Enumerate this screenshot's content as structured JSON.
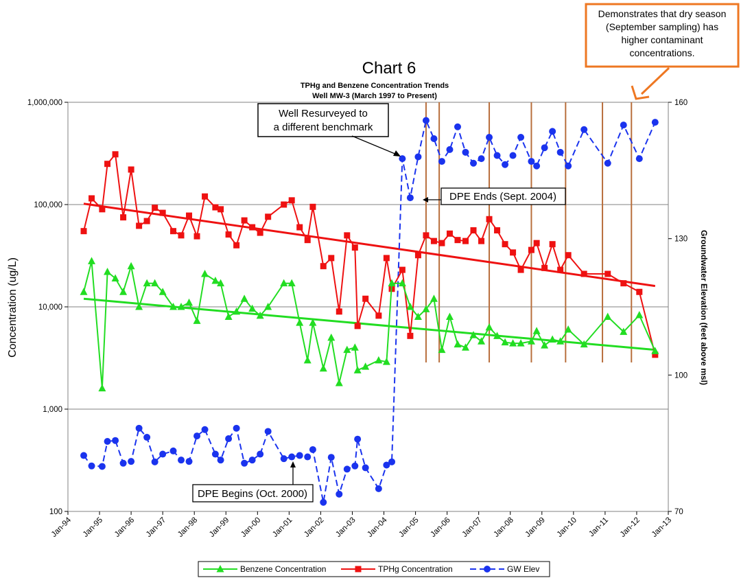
{
  "chart_data": {
    "type": "line",
    "title": "Chart 6",
    "subtitle_line1": "TPHg and Benzene Concentration Trends",
    "subtitle_line2": "Well MW-3 (March 1997 to Present)",
    "ylabel_left": "Concentration (ug/L)",
    "ylabel_right": "Groundwater Elevation (feet above msl)",
    "y_left_scale": "log",
    "y_left_range": [
      100,
      1000000
    ],
    "y_left_ticks": [
      "100",
      "1,000",
      "10,000",
      "100,000",
      "1,000,000"
    ],
    "y_right_range": [
      70,
      160
    ],
    "y_right_ticks": [
      "70",
      "100",
      "130",
      "160"
    ],
    "x_range": [
      "Jan-94",
      "Jan-13"
    ],
    "x_ticks": [
      "Jan-94",
      "Jan-95",
      "Jan-96",
      "Jan-97",
      "Jan-98",
      "Jan-99",
      "Jan-00",
      "Jan-01",
      "Jan-02",
      "Jan-03",
      "Jan-04",
      "Jan-05",
      "Jan-06",
      "Jan-07",
      "Jan-08",
      "Jan-09",
      "Jan-10",
      "Jan-11",
      "Jan-12",
      "Jan-13"
    ],
    "grid": "horizontal",
    "legend_position": "bottom",
    "series": [
      {
        "name": "Benzene Concentration",
        "axis": "left",
        "color": "#22dd22",
        "marker": "triangle",
        "dash": "solid",
        "points": [
          [
            "1994-07",
            14000
          ],
          [
            "1994-10",
            28000
          ],
          [
            "1995-02",
            1600
          ],
          [
            "1995-04",
            22000
          ],
          [
            "1995-07",
            19000
          ],
          [
            "1995-10",
            14000
          ],
          [
            "1996-01",
            25000
          ],
          [
            "1996-04",
            10000
          ],
          [
            "1996-07",
            17000
          ],
          [
            "1996-10",
            17000
          ],
          [
            "1997-01",
            14000
          ],
          [
            "1997-05",
            10000
          ],
          [
            "1997-08",
            10000
          ],
          [
            "1997-11",
            11000
          ],
          [
            "1998-02",
            7300
          ],
          [
            "1998-05",
            21000
          ],
          [
            "1998-09",
            18000
          ],
          [
            "1998-11",
            17000
          ],
          [
            "1999-02",
            8000
          ],
          [
            "1999-05",
            9000
          ],
          [
            "1999-08",
            12000
          ],
          [
            "1999-11",
            9600
          ],
          [
            "2000-02",
            8200
          ],
          [
            "2000-05",
            10000
          ],
          [
            "2000-11",
            17000
          ],
          [
            "2001-02",
            17000
          ],
          [
            "2001-05",
            7000
          ],
          [
            "2001-08",
            3000
          ],
          [
            "2001-10",
            7000
          ],
          [
            "2002-02",
            2500
          ],
          [
            "2002-05",
            5000
          ],
          [
            "2002-08",
            1800
          ],
          [
            "2002-11",
            3800
          ],
          [
            "2003-02",
            4000
          ],
          [
            "2003-03",
            2400
          ],
          [
            "2003-06",
            2600
          ],
          [
            "2003-11",
            3000
          ],
          [
            "2004-02",
            2900
          ],
          [
            "2004-04",
            17000
          ],
          [
            "2004-08",
            17000
          ],
          [
            "2004-11",
            10000
          ],
          [
            "2005-02",
            8000
          ],
          [
            "2005-05",
            9500
          ],
          [
            "2005-08",
            12000
          ],
          [
            "2005-11",
            3800
          ],
          [
            "2006-02",
            8000
          ],
          [
            "2006-05",
            4300
          ],
          [
            "2006-08",
            4000
          ],
          [
            "2006-11",
            5300
          ],
          [
            "2007-02",
            4600
          ],
          [
            "2007-05",
            6300
          ],
          [
            "2007-08",
            5200
          ],
          [
            "2007-11",
            4500
          ],
          [
            "2008-02",
            4400
          ],
          [
            "2008-05",
            4400
          ],
          [
            "2008-09",
            4600
          ],
          [
            "2008-11",
            5800
          ],
          [
            "2009-02",
            4200
          ],
          [
            "2009-05",
            4800
          ],
          [
            "2009-08",
            4600
          ],
          [
            "2009-11",
            6000
          ],
          [
            "2010-05",
            4300
          ],
          [
            "2011-02",
            8000
          ],
          [
            "2011-08",
            5700
          ],
          [
            "2012-02",
            8300
          ],
          [
            "2012-08",
            3700
          ]
        ]
      },
      {
        "name": "TPHg Concentration",
        "axis": "left",
        "color": "#ee1111",
        "marker": "square",
        "dash": "solid",
        "points": [
          [
            "1994-07",
            55000
          ],
          [
            "1994-10",
            115000
          ],
          [
            "1995-02",
            90000
          ],
          [
            "1995-04",
            250000
          ],
          [
            "1995-07",
            310000
          ],
          [
            "1995-10",
            75000
          ],
          [
            "1996-01",
            220000
          ],
          [
            "1996-04",
            62000
          ],
          [
            "1996-07",
            69000
          ],
          [
            "1996-10",
            93000
          ],
          [
            "1997-01",
            83000
          ],
          [
            "1997-05",
            55000
          ],
          [
            "1997-08",
            50000
          ],
          [
            "1997-11",
            78000
          ],
          [
            "1998-02",
            49000
          ],
          [
            "1998-05",
            120000
          ],
          [
            "1998-09",
            94000
          ],
          [
            "1998-11",
            90000
          ],
          [
            "1999-02",
            51000
          ],
          [
            "1999-05",
            40000
          ],
          [
            "1999-08",
            70000
          ],
          [
            "1999-11",
            60000
          ],
          [
            "2000-02",
            53000
          ],
          [
            "2000-05",
            76000
          ],
          [
            "2000-11",
            100000
          ],
          [
            "2001-02",
            110000
          ],
          [
            "2001-05",
            60000
          ],
          [
            "2001-08",
            45000
          ],
          [
            "2001-10",
            95000
          ],
          [
            "2002-02",
            25000
          ],
          [
            "2002-05",
            30000
          ],
          [
            "2002-08",
            9000
          ],
          [
            "2002-11",
            50000
          ],
          [
            "2003-02",
            38000
          ],
          [
            "2003-03",
            6500
          ],
          [
            "2003-06",
            12000
          ],
          [
            "2003-11",
            8200
          ],
          [
            "2004-02",
            30000
          ],
          [
            "2004-04",
            15000
          ],
          [
            "2004-08",
            23000
          ],
          [
            "2004-11",
            5200
          ],
          [
            "2005-02",
            32000
          ],
          [
            "2005-05",
            50000
          ],
          [
            "2005-08",
            44000
          ],
          [
            "2005-11",
            42000
          ],
          [
            "2006-02",
            52000
          ],
          [
            "2006-05",
            45000
          ],
          [
            "2006-08",
            44000
          ],
          [
            "2006-11",
            56000
          ],
          [
            "2007-02",
            44000
          ],
          [
            "2007-05",
            72000
          ],
          [
            "2007-08",
            56000
          ],
          [
            "2007-11",
            41000
          ],
          [
            "2008-02",
            34000
          ],
          [
            "2008-05",
            23000
          ],
          [
            "2008-09",
            36000
          ],
          [
            "2008-11",
            42000
          ],
          [
            "2009-02",
            24000
          ],
          [
            "2009-05",
            41000
          ],
          [
            "2009-08",
            23000
          ],
          [
            "2009-11",
            32000
          ],
          [
            "2010-05",
            21000
          ],
          [
            "2011-02",
            21000
          ],
          [
            "2011-08",
            17000
          ],
          [
            "2012-02",
            14000
          ],
          [
            "2012-08",
            3400
          ]
        ]
      },
      {
        "name": "GW Elev",
        "axis": "right",
        "color": "#1a33ee",
        "marker": "circle",
        "dash": "dashed",
        "points": [
          [
            "1994-07",
            82.3
          ],
          [
            "1994-10",
            80.0
          ],
          [
            "1995-02",
            79.9
          ],
          [
            "1995-04",
            85.4
          ],
          [
            "1995-07",
            85.6
          ],
          [
            "1995-10",
            80.6
          ],
          [
            "1996-01",
            81.0
          ],
          [
            "1996-04",
            88.3
          ],
          [
            "1996-07",
            86.3
          ],
          [
            "1996-10",
            80.9
          ],
          [
            "1997-01",
            82.6
          ],
          [
            "1997-05",
            83.3
          ],
          [
            "1997-08",
            81.3
          ],
          [
            "1997-11",
            81.0
          ],
          [
            "1998-02",
            86.6
          ],
          [
            "1998-05",
            88.0
          ],
          [
            "1998-09",
            82.6
          ],
          [
            "1998-11",
            81.3
          ],
          [
            "1999-02",
            86.0
          ],
          [
            "1999-05",
            88.3
          ],
          [
            "1999-08",
            80.6
          ],
          [
            "1999-11",
            81.3
          ],
          [
            "2000-02",
            82.6
          ],
          [
            "2000-05",
            87.6
          ],
          [
            "2000-11",
            81.6
          ],
          [
            "2001-02",
            82.0
          ],
          [
            "2001-05",
            82.3
          ],
          [
            "2001-08",
            82.0
          ],
          [
            "2001-10",
            83.6
          ],
          [
            "2002-02",
            72.0
          ],
          [
            "2002-05",
            81.9
          ],
          [
            "2002-08",
            73.8
          ],
          [
            "2002-11",
            79.3
          ],
          [
            "2003-02",
            80.0
          ],
          [
            "2003-03",
            85.9
          ],
          [
            "2003-06",
            79.6
          ],
          [
            "2003-11",
            75.0
          ],
          [
            "2004-02",
            80.2
          ],
          [
            "2004-04",
            80.9
          ],
          [
            "2004-08",
            147.6
          ],
          [
            "2004-11",
            139.0
          ],
          [
            "2005-02",
            148.0
          ],
          [
            "2005-05",
            156.0
          ],
          [
            "2005-08",
            152.0
          ],
          [
            "2005-11",
            147.0
          ],
          [
            "2006-02",
            149.6
          ],
          [
            "2006-05",
            154.6
          ],
          [
            "2006-08",
            149.0
          ],
          [
            "2006-11",
            146.6
          ],
          [
            "2007-02",
            147.6
          ],
          [
            "2007-05",
            152.3
          ],
          [
            "2007-08",
            148.3
          ],
          [
            "2007-11",
            146.3
          ],
          [
            "2008-02",
            148.3
          ],
          [
            "2008-05",
            152.3
          ],
          [
            "2008-09",
            147.0
          ],
          [
            "2008-11",
            146.0
          ],
          [
            "2009-02",
            150.0
          ],
          [
            "2009-05",
            153.6
          ],
          [
            "2009-08",
            149.0
          ],
          [
            "2009-11",
            146.0
          ],
          [
            "2010-05",
            154.0
          ],
          [
            "2011-02",
            146.6
          ],
          [
            "2011-08",
            155.0
          ],
          [
            "2012-02",
            147.6
          ],
          [
            "2012-08",
            155.6
          ]
        ]
      },
      {
        "name": "",
        "kind": "trendline",
        "axis": "left",
        "color": "#ee1111",
        "points": [
          [
            "1994-07",
            102000
          ],
          [
            "2012-08",
            16000
          ]
        ]
      },
      {
        "name": "",
        "kind": "trendline",
        "axis": "left",
        "color": "#22dd22",
        "points": [
          [
            "1994-07",
            12000
          ],
          [
            "2012-08",
            3800
          ]
        ]
      }
    ],
    "vertical_markers": {
      "color": "#b86e3c",
      "dates": [
        "2005-05",
        "2005-10",
        "2007-05",
        "2008-09",
        "2009-10",
        "2010-12",
        "2011-11"
      ]
    },
    "annotations": [
      {
        "id": "resurvey",
        "text_lines": [
          "Well Resurveyed to",
          "a different benchmark"
        ]
      },
      {
        "id": "dpe-ends",
        "text_lines": [
          "DPE Ends (Sept. 2004)"
        ]
      },
      {
        "id": "dpe-begins",
        "text_lines": [
          "DPE Begins (Oct. 2000)"
        ]
      },
      {
        "id": "dry-season",
        "text_lines": [
          "Demonstrates that dry season",
          "(September sampling) has",
          "higher contaminant",
          "concentrations."
        ],
        "border_color": "#ee7722"
      }
    ]
  }
}
